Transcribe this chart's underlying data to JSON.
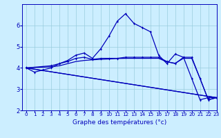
{
  "xlabel": "Graphe des températures (°c)",
  "background_color": "#cceeff",
  "line_color": "#0000bb",
  "grid_color": "#99ccdd",
  "xlim": [
    -0.5,
    23
  ],
  "ylim": [
    2.0,
    7.0
  ],
  "yticks": [
    2,
    3,
    4,
    5,
    6
  ],
  "xticks": [
    0,
    1,
    2,
    3,
    4,
    5,
    6,
    7,
    8,
    9,
    10,
    11,
    12,
    13,
    14,
    15,
    16,
    17,
    18,
    19,
    20,
    21,
    22,
    23
  ],
  "line1_x": [
    0,
    1,
    2,
    3,
    4,
    5,
    6,
    7,
    8,
    9,
    10,
    11,
    12,
    13,
    14,
    15,
    16,
    17,
    18,
    19,
    20,
    21,
    22,
    23
  ],
  "line1_y": [
    4.0,
    3.8,
    3.9,
    4.0,
    4.2,
    4.35,
    4.6,
    4.7,
    4.45,
    4.9,
    5.5,
    6.2,
    6.55,
    6.1,
    5.9,
    5.7,
    4.6,
    4.2,
    4.65,
    4.5,
    3.5,
    2.5,
    2.6,
    2.6
  ],
  "line2_x": [
    0,
    3,
    4,
    5,
    6,
    7,
    8,
    9,
    10,
    11,
    12,
    13,
    14,
    15,
    16,
    17,
    18,
    19,
    20,
    21,
    22,
    23
  ],
  "line2_y": [
    4.0,
    4.1,
    4.2,
    4.3,
    4.45,
    4.5,
    4.4,
    4.45,
    4.45,
    4.45,
    4.5,
    4.5,
    4.5,
    4.5,
    4.5,
    4.3,
    4.2,
    4.5,
    4.5,
    3.5,
    2.5,
    2.6
  ],
  "line3_x": [
    0,
    3,
    4,
    5,
    6,
    7,
    8,
    9,
    10,
    11,
    12,
    13,
    14,
    15,
    16,
    17,
    18,
    19,
    20,
    21,
    22,
    23
  ],
  "line3_y": [
    4.0,
    4.05,
    4.1,
    4.2,
    4.3,
    4.35,
    4.38,
    4.4,
    4.42,
    4.44,
    4.45,
    4.45,
    4.45,
    4.45,
    4.45,
    4.28,
    4.22,
    4.45,
    4.45,
    3.5,
    2.5,
    2.6
  ],
  "line4_x": [
    0,
    23
  ],
  "line4_y": [
    4.0,
    2.6
  ],
  "line5_x": [
    0,
    23
  ],
  "line5_y": [
    4.0,
    2.6
  ],
  "xlabel_fontsize": 6.5,
  "tick_fontsize_x": 5.2,
  "tick_fontsize_y": 6.0
}
